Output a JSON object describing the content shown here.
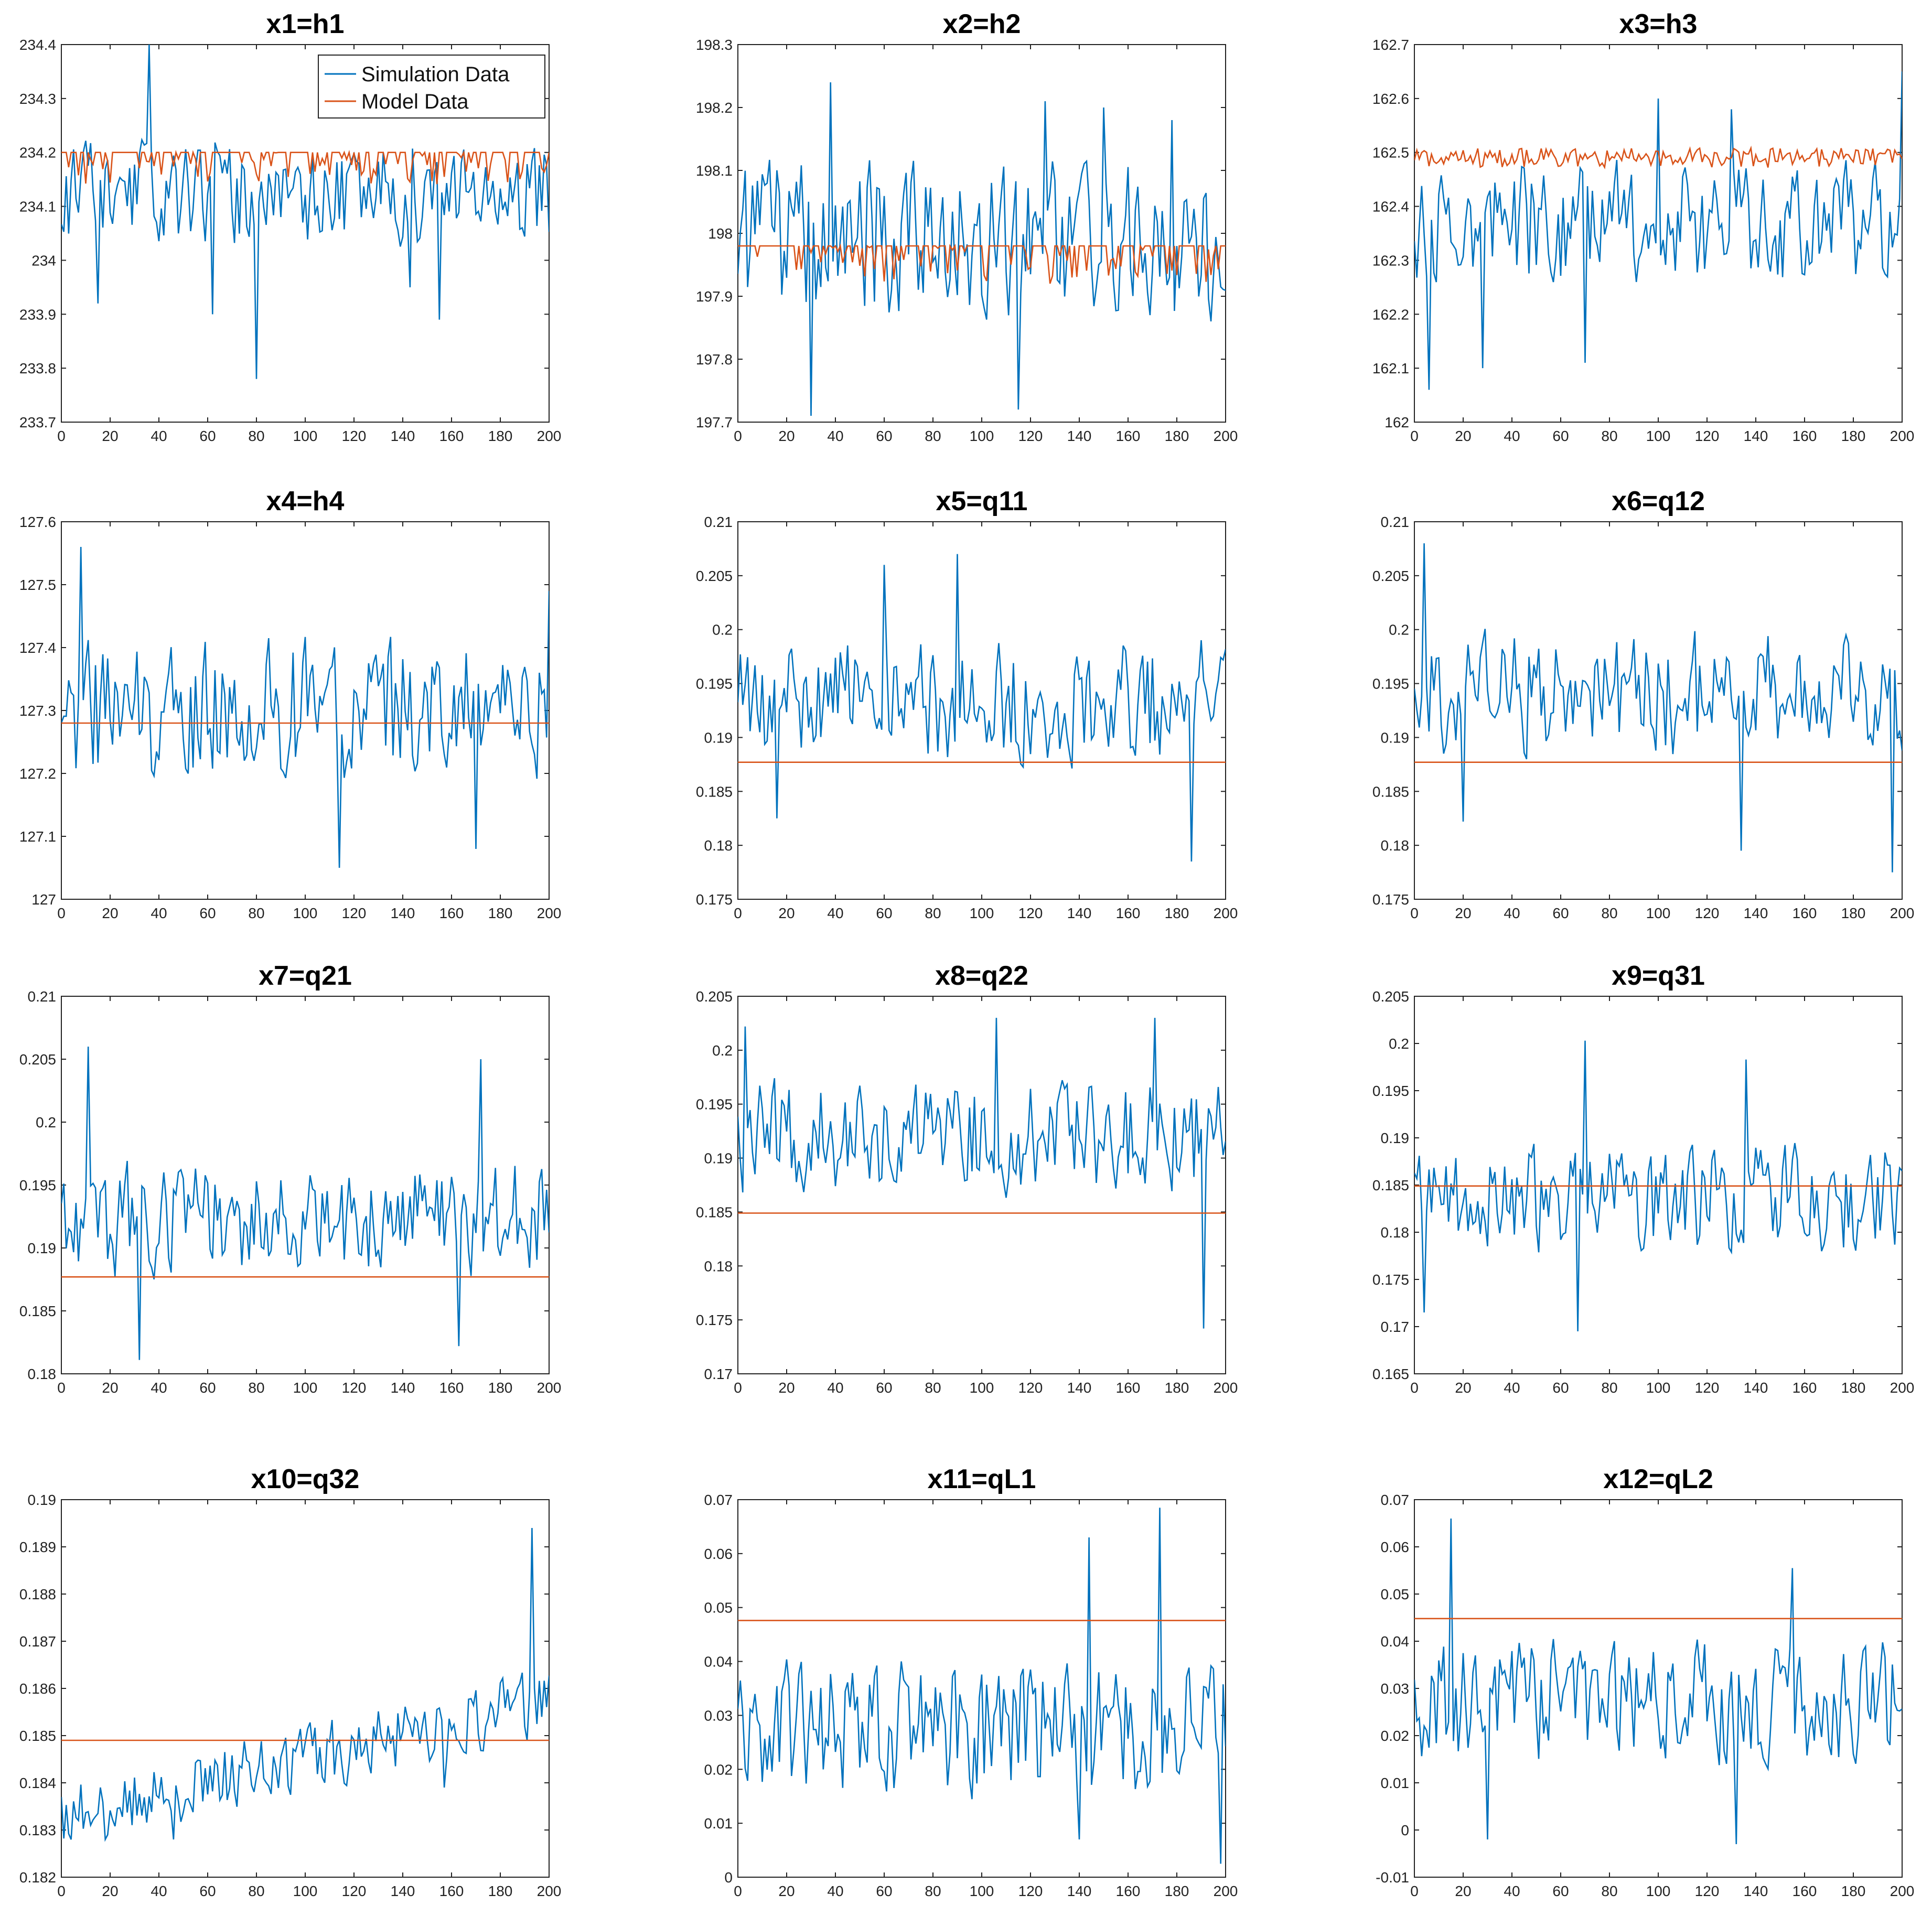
{
  "colors": {
    "simulation": "#0072BD",
    "model": "#D95319",
    "axis": "#222222"
  },
  "legend": {
    "entries": [
      "Simulation Data",
      "Model Data"
    ],
    "location": "top-right of first panel"
  },
  "chart_data": [
    {
      "id": "x1",
      "type": "line",
      "title": "x1=h1",
      "xlim": [
        0,
        200
      ],
      "xticks": [
        "0",
        "20",
        "40",
        "60",
        "80",
        "100",
        "120",
        "140",
        "160",
        "180",
        "200"
      ],
      "ylim": [
        233.7,
        234.4
      ],
      "yticks": [
        "233.7",
        "233.8",
        "233.9",
        "234",
        "234.1",
        "234.2",
        "234.3",
        "234.4"
      ],
      "ytick_values": [
        233.7,
        233.8,
        233.9,
        234.0,
        234.1,
        234.2,
        234.3,
        234.4
      ],
      "sim": {
        "name": "Simulation Data",
        "mean": 234.12,
        "amp": 0.09,
        "peaks": [
          [
            36,
            234.4
          ],
          [
            80,
            233.78
          ],
          [
            15,
            233.92
          ],
          [
            62,
            233.9
          ],
          [
            143,
            233.95
          ],
          [
            155,
            233.89
          ]
        ],
        "seed": 11
      },
      "model": {
        "name": "Model Data",
        "kind": "spiky",
        "base": 234.2,
        "amp": 0.06,
        "dir": -1,
        "seed": 21
      }
    },
    {
      "id": "x2",
      "type": "line",
      "title": "x2=h2",
      "xlim": [
        0,
        200
      ],
      "xticks": [
        "0",
        "20",
        "40",
        "60",
        "80",
        "100",
        "120",
        "140",
        "160",
        "180",
        "200"
      ],
      "ylim": [
        197.7,
        198.3
      ],
      "yticks": [
        "197.7",
        "197.8",
        "197.9",
        "198",
        "198.1",
        "198.2",
        "198.3"
      ],
      "ytick_values": [
        197.7,
        197.8,
        197.9,
        198.0,
        198.1,
        198.2,
        198.3
      ],
      "sim": {
        "name": "Simulation Data",
        "mean": 197.99,
        "amp": 0.12,
        "peaks": [
          [
            30,
            197.71
          ],
          [
            38,
            198.24
          ],
          [
            115,
            197.72
          ],
          [
            126,
            198.21
          ],
          [
            150,
            198.2
          ],
          [
            178,
            198.18
          ]
        ],
        "seed": 12
      },
      "model": {
        "name": "Model Data",
        "kind": "spiky",
        "base": 197.98,
        "amp": 0.06,
        "dir": -1,
        "seed": 22
      }
    },
    {
      "id": "x3",
      "type": "line",
      "title": "x3=h3",
      "xlim": [
        0,
        200
      ],
      "xticks": [
        "0",
        "20",
        "40",
        "60",
        "80",
        "100",
        "120",
        "140",
        "160",
        "180",
        "200"
      ],
      "ylim": [
        162.0,
        162.7
      ],
      "yticks": [
        "162",
        "162.1",
        "162.2",
        "162.3",
        "162.4",
        "162.5",
        "162.6",
        "162.7"
      ],
      "ytick_values": [
        162.0,
        162.1,
        162.2,
        162.3,
        162.4,
        162.5,
        162.6,
        162.7
      ],
      "sim": {
        "name": "Simulation Data",
        "mean": 162.37,
        "amp": 0.11,
        "peaks": [
          [
            6,
            162.06
          ],
          [
            28,
            162.1
          ],
          [
            70,
            162.11
          ],
          [
            100,
            162.6
          ],
          [
            130,
            162.58
          ],
          [
            200,
            162.65
          ]
        ],
        "seed": 13
      },
      "model": {
        "name": "Model Data",
        "kind": "spiky",
        "base": 162.49,
        "amp": 0.03,
        "dir": 0,
        "seed": 23
      }
    },
    {
      "id": "x4",
      "type": "line",
      "title": "x4=h4",
      "xlim": [
        0,
        200
      ],
      "xticks": [
        "0",
        "20",
        "40",
        "60",
        "80",
        "100",
        "120",
        "140",
        "160",
        "180",
        "200"
      ],
      "ylim": [
        127.0,
        127.6
      ],
      "yticks": [
        "127",
        "127.1",
        "127.2",
        "127.3",
        "127.4",
        "127.5",
        "127.6"
      ],
      "ytick_values": [
        127.0,
        127.1,
        127.2,
        127.3,
        127.4,
        127.5,
        127.6
      ],
      "sim": {
        "name": "Simulation Data",
        "mean": 127.3,
        "amp": 0.11,
        "peaks": [
          [
            8,
            127.56
          ],
          [
            114,
            127.05
          ],
          [
            170,
            127.08
          ],
          [
            200,
            127.49
          ]
        ],
        "seed": 14
      },
      "model": {
        "name": "Model Data",
        "kind": "flat",
        "base": 127.28
      }
    },
    {
      "id": "x5",
      "type": "line",
      "title": "x5=q11",
      "xlim": [
        0,
        200
      ],
      "xticks": [
        "0",
        "20",
        "40",
        "60",
        "80",
        "100",
        "120",
        "140",
        "160",
        "180",
        "200"
      ],
      "ylim": [
        0.175,
        0.21
      ],
      "yticks": [
        "0.175",
        "0.18",
        "0.185",
        "0.19",
        "0.195",
        "0.2",
        "0.205",
        "0.21"
      ],
      "ytick_values": [
        0.175,
        0.18,
        0.185,
        0.19,
        0.195,
        0.2,
        0.205,
        0.21
      ],
      "sim": {
        "name": "Simulation Data",
        "mean": 0.1935,
        "amp": 0.0055,
        "peaks": [
          [
            90,
            0.207
          ],
          [
            60,
            0.206
          ],
          [
            186,
            0.1785
          ],
          [
            16,
            0.1825
          ]
        ],
        "seed": 15
      },
      "model": {
        "name": "Model Data",
        "kind": "flat",
        "base": 0.1877
      }
    },
    {
      "id": "x6",
      "type": "line",
      "title": "x6=q12",
      "xlim": [
        0,
        200
      ],
      "xticks": [
        "0",
        "20",
        "40",
        "60",
        "80",
        "100",
        "120",
        "140",
        "160",
        "180",
        "200"
      ],
      "ylim": [
        0.175,
        0.21
      ],
      "yticks": [
        "0.175",
        "0.18",
        "0.185",
        "0.19",
        "0.195",
        "0.2",
        "0.205",
        "0.21"
      ],
      "ytick_values": [
        0.175,
        0.18,
        0.185,
        0.19,
        0.195,
        0.2,
        0.205,
        0.21
      ],
      "sim": {
        "name": "Simulation Data",
        "mean": 0.194,
        "amp": 0.0055,
        "peaks": [
          [
            4,
            0.208
          ],
          [
            196,
            0.1775
          ],
          [
            134,
            0.1795
          ],
          [
            20,
            0.1822
          ]
        ],
        "seed": 16
      },
      "model": {
        "name": "Model Data",
        "kind": "flat",
        "base": 0.1877
      }
    },
    {
      "id": "x7",
      "type": "line",
      "title": "x7=q21",
      "xlim": [
        0,
        200
      ],
      "xticks": [
        "0",
        "20",
        "40",
        "60",
        "80",
        "100",
        "120",
        "140",
        "160",
        "180",
        "200"
      ],
      "ylim": [
        0.18,
        0.21
      ],
      "yticks": [
        "0.18",
        "0.185",
        "0.19",
        "0.195",
        "0.2",
        "0.205",
        "0.21"
      ],
      "ytick_values": [
        0.18,
        0.185,
        0.19,
        0.195,
        0.2,
        0.205,
        0.21
      ],
      "sim": {
        "name": "Simulation Data",
        "mean": 0.1925,
        "amp": 0.0045,
        "peaks": [
          [
            11,
            0.206
          ],
          [
            32,
            0.1811
          ],
          [
            172,
            0.205
          ],
          [
            163,
            0.1822
          ]
        ],
        "seed": 17
      },
      "model": {
        "name": "Model Data",
        "kind": "flat",
        "base": 0.1877
      }
    },
    {
      "id": "x8",
      "type": "line",
      "title": "x8=q22",
      "xlim": [
        0,
        200
      ],
      "xticks": [
        "0",
        "20",
        "40",
        "60",
        "80",
        "100",
        "120",
        "140",
        "160",
        "180",
        "200"
      ],
      "ylim": [
        0.17,
        0.205
      ],
      "yticks": [
        "0.17",
        "0.175",
        "0.18",
        "0.185",
        "0.19",
        "0.195",
        "0.2",
        "0.205"
      ],
      "ytick_values": [
        0.17,
        0.175,
        0.18,
        0.185,
        0.19,
        0.195,
        0.2,
        0.205
      ],
      "sim": {
        "name": "Simulation Data",
        "mean": 0.192,
        "amp": 0.005,
        "peaks": [
          [
            106,
            0.203
          ],
          [
            171,
            0.203
          ],
          [
            191,
            0.1742
          ],
          [
            3,
            0.2022
          ]
        ],
        "seed": 18
      },
      "model": {
        "name": "Model Data",
        "kind": "flat",
        "base": 0.1849
      }
    },
    {
      "id": "x9",
      "type": "line",
      "title": "x9=q31",
      "xlim": [
        0,
        200
      ],
      "xticks": [
        "0",
        "20",
        "40",
        "60",
        "80",
        "100",
        "120",
        "140",
        "160",
        "180",
        "200"
      ],
      "ylim": [
        0.165,
        0.205
      ],
      "yticks": [
        "0.165",
        "0.17",
        "0.175",
        "0.18",
        "0.185",
        "0.19",
        "0.195",
        "0.2",
        "0.205"
      ],
      "ytick_values": [
        0.165,
        0.17,
        0.175,
        0.18,
        0.185,
        0.19,
        0.195,
        0.2,
        0.205
      ],
      "sim": {
        "name": "Simulation Data",
        "mean": 0.1835,
        "amp": 0.0055,
        "peaks": [
          [
            70,
            0.2003
          ],
          [
            67,
            0.1695
          ],
          [
            136,
            0.1983
          ],
          [
            4,
            0.1715
          ]
        ],
        "seed": 19
      },
      "model": {
        "name": "Model Data",
        "kind": "flat",
        "base": 0.1849
      }
    },
    {
      "id": "x10",
      "type": "line",
      "title": "x10=q32",
      "xlim": [
        0,
        200
      ],
      "xticks": [
        "0",
        "20",
        "40",
        "60",
        "80",
        "100",
        "120",
        "140",
        "160",
        "180",
        "200"
      ],
      "ylim": [
        0.182,
        0.19
      ],
      "yticks": [
        "0.182",
        "0.183",
        "0.184",
        "0.185",
        "0.186",
        "0.187",
        "0.188",
        "0.189",
        "0.19"
      ],
      "ytick_values": [
        0.182,
        0.183,
        0.184,
        0.185,
        0.186,
        0.187,
        0.188,
        0.189,
        0.19
      ],
      "sim": {
        "name": "Simulation Data",
        "mean": 0.1845,
        "amp": 0.0007,
        "trend": 0.0025,
        "peaks": [
          [
            193,
            0.1894
          ],
          [
            46,
            0.1828
          ],
          [
            18,
            0.1828
          ],
          [
            157,
            0.1839
          ]
        ],
        "seed": 20
      },
      "model": {
        "name": "Model Data",
        "kind": "flat",
        "base": 0.1849
      }
    },
    {
      "id": "x11",
      "type": "line",
      "title": "x11=qL1",
      "xlim": [
        0,
        200
      ],
      "xticks": [
        "0",
        "20",
        "40",
        "60",
        "80",
        "100",
        "120",
        "140",
        "160",
        "180",
        "200"
      ],
      "ylim": [
        0.0,
        0.07
      ],
      "yticks": [
        "0",
        "0.01",
        "0.02",
        "0.03",
        "0.04",
        "0.05",
        "0.06",
        "0.07"
      ],
      "ytick_values": [
        0.0,
        0.01,
        0.02,
        0.03,
        0.04,
        0.05,
        0.06,
        0.07
      ],
      "sim": {
        "name": "Simulation Data",
        "mean": 0.028,
        "amp": 0.012,
        "peaks": [
          [
            173,
            0.0685
          ],
          [
            144,
            0.063
          ],
          [
            198,
            0.0025
          ],
          [
            140,
            0.007
          ]
        ],
        "seed": 31
      },
      "model": {
        "name": "Model Data",
        "kind": "flat",
        "base": 0.0476
      }
    },
    {
      "id": "x12",
      "type": "line",
      "title": "x12=qL2",
      "xlim": [
        0,
        200
      ],
      "xticks": [
        "0",
        "20",
        "40",
        "60",
        "80",
        "100",
        "120",
        "140",
        "160",
        "180",
        "200"
      ],
      "ylim": [
        -0.01,
        0.07
      ],
      "yticks": [
        "-0.01",
        "0",
        "0.01",
        "0.02",
        "0.03",
        "0.04",
        "0.05",
        "0.06",
        "0.07"
      ],
      "ytick_values": [
        -0.01,
        0.0,
        0.01,
        0.02,
        0.03,
        0.04,
        0.05,
        0.06,
        0.07
      ],
      "sim": {
        "name": "Simulation Data",
        "mean": 0.027,
        "amp": 0.012,
        "peaks": [
          [
            15,
            0.066
          ],
          [
            30,
            -0.002
          ],
          [
            132,
            -0.003
          ],
          [
            155,
            0.0555
          ]
        ],
        "seed": 32
      },
      "model": {
        "name": "Model Data",
        "kind": "flat",
        "base": 0.0448
      }
    }
  ]
}
